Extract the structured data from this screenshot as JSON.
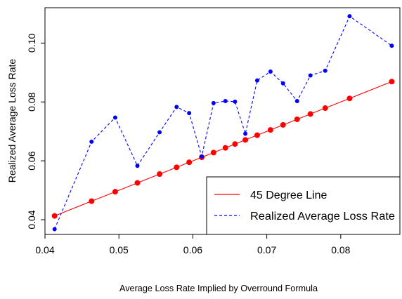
{
  "colors": {
    "red": "#ff0000",
    "blue": "#0000ff",
    "axis": "#000000"
  },
  "chart_data": {
    "type": "line",
    "title": "",
    "xlabel": "Average Loss Rate Implied by Overround Formula",
    "ylabel": "Realized Average Loss Rate",
    "xlim": [
      0.04,
      0.088
    ],
    "ylim": [
      0.035,
      0.112
    ],
    "xticks": [
      0.04,
      0.05,
      0.06,
      0.07,
      0.08
    ],
    "xtick_labels": [
      "0.04",
      "0.05",
      "0.06",
      "0.07",
      "0.08"
    ],
    "yticks": [
      0.04,
      0.06,
      0.08,
      0.1
    ],
    "ytick_labels": [
      "0.04",
      "0.06",
      "0.08",
      "0.10"
    ],
    "grid": false,
    "legend": "bottom-right",
    "x": [
      0.0413,
      0.0463,
      0.0495,
      0.0525,
      0.0555,
      0.0578,
      0.0595,
      0.0612,
      0.0628,
      0.0644,
      0.0657,
      0.0671,
      0.0687,
      0.0705,
      0.0722,
      0.0741,
      0.0759,
      0.0779,
      0.0812,
      0.0869
    ],
    "series": [
      {
        "name": "45 Degree Line",
        "color": "#ff0000",
        "style": "solid",
        "values": [
          0.0413,
          0.0463,
          0.0495,
          0.0525,
          0.0555,
          0.0578,
          0.0595,
          0.0612,
          0.0628,
          0.0644,
          0.0657,
          0.0671,
          0.0687,
          0.0705,
          0.0722,
          0.0741,
          0.0759,
          0.0779,
          0.0812,
          0.0869
        ]
      },
      {
        "name": "Realized Average Loss Rate",
        "color": "#0000ff",
        "style": "dashed",
        "values": [
          0.0368,
          0.0665,
          0.0747,
          0.0583,
          0.0697,
          0.0783,
          0.0762,
          0.0615,
          0.0796,
          0.0803,
          0.0801,
          0.0692,
          0.0873,
          0.0903,
          0.0863,
          0.0803,
          0.089,
          0.0906,
          0.1091,
          0.0991
        ]
      }
    ]
  }
}
